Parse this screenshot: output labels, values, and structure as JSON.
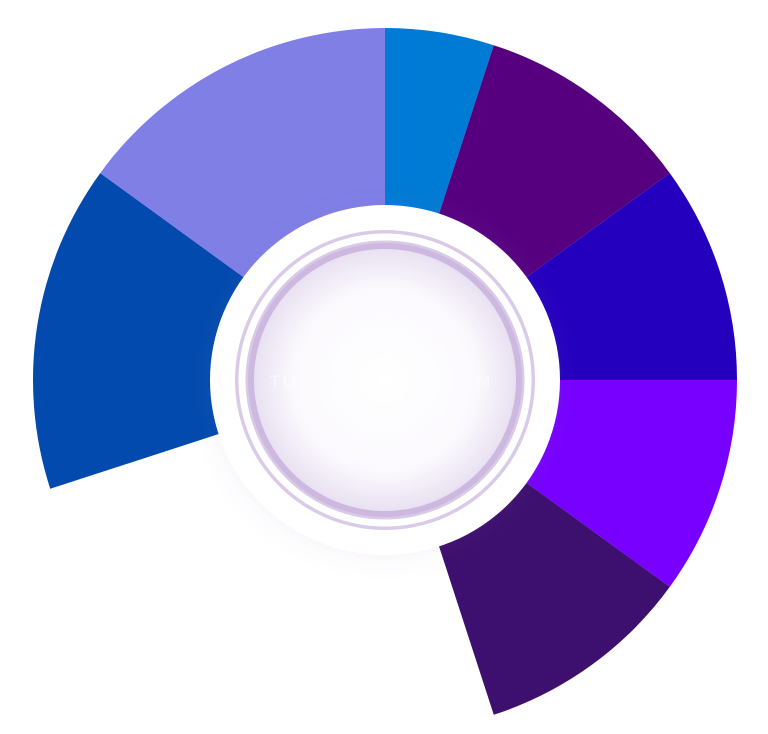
{
  "wheel": {
    "segments": [
      {
        "id": "segment-1",
        "color": "#007BD5"
      },
      {
        "id": "segment-2",
        "color": "#560080"
      },
      {
        "id": "segment-3",
        "color": "#2400BE"
      },
      {
        "id": "segment-4",
        "color": "#7700FF"
      },
      {
        "id": "segment-5",
        "color": "#3D0F6E"
      },
      {
        "id": "segment-6",
        "color": "#024AAE"
      },
      {
        "id": "segment-7",
        "color": "#7F7FE6"
      }
    ],
    "hub": {
      "ring_color": "#ffffff",
      "glow_color": "#8f6bb5"
    },
    "center_text": {
      "left": "TU",
      "right": "M"
    }
  }
}
